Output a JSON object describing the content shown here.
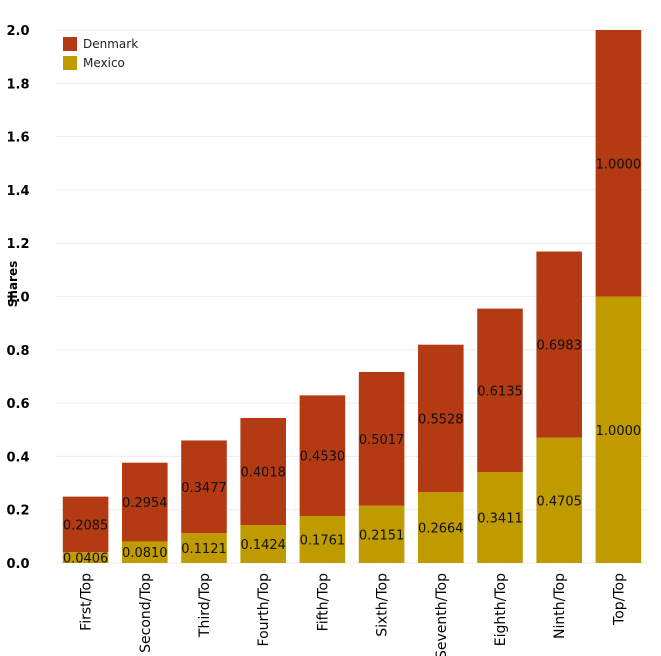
{
  "chart_data": {
    "type": "bar",
    "stacked": true,
    "categories": [
      "First/Top",
      "Second/Top",
      "Third/Top",
      "Fourth/Top",
      "Fifth/Top",
      "Sixth/Top",
      "Seventh/Top",
      "Eighth/Top",
      "Ninth/Top",
      "Top/Top"
    ],
    "series": [
      {
        "name": "Mexico",
        "color": "#bf9b00",
        "values": [
          0.0406,
          0.081,
          0.1121,
          0.1424,
          0.1761,
          0.2151,
          0.2664,
          0.3411,
          0.4705,
          1.0
        ],
        "labels": [
          "0.0406",
          "0.0810",
          "0.1121",
          "0.1424",
          "0.1761",
          "0.2151",
          "0.2664",
          "0.3411",
          "0.4705",
          "1.0000"
        ]
      },
      {
        "name": "Denmark",
        "color": "#b43a14",
        "values": [
          0.2085,
          0.2954,
          0.3477,
          0.4018,
          0.453,
          0.5017,
          0.5528,
          0.6135,
          0.6983,
          1.0
        ],
        "labels": [
          "0.2085",
          "0.2954",
          "0.3477",
          "0.4018",
          "0.4530",
          "0.5017",
          "0.5528",
          "0.6135",
          "0.6983",
          "1.0000"
        ]
      }
    ],
    "legend_order": [
      "Denmark",
      "Mexico"
    ],
    "ylabel": "Shares",
    "xlabel": "",
    "ylim": [
      0,
      2.0
    ],
    "yticks": [
      "0.0",
      "0.2",
      "0.4",
      "0.6",
      "0.8",
      "1.0",
      "1.2",
      "1.4",
      "1.6",
      "1.8",
      "2.0"
    ],
    "grid": true,
    "legend_position": "top-left"
  }
}
